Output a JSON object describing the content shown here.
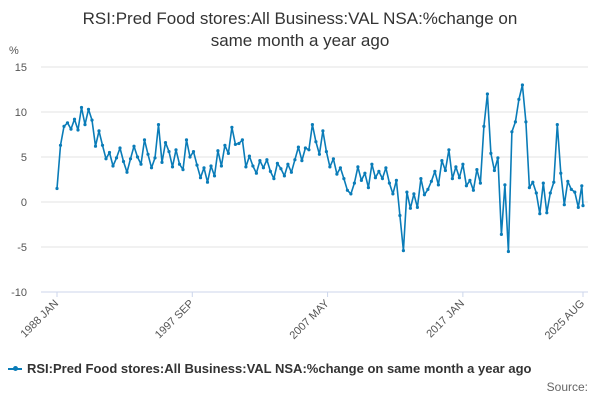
{
  "chart_data": {
    "type": "line",
    "title_lines": [
      "RSI:Pred Food stores:All Business:VAL NSA:%change on",
      "same month a year ago"
    ],
    "ylabel": "%",
    "ylim": [
      -10,
      15
    ],
    "yticks": [
      15,
      10,
      5,
      0,
      -5,
      -10
    ],
    "xlim": [
      "1988-01",
      "2025-08"
    ],
    "xticks": [
      "1988 JAN",
      "1997 SEP",
      "2007 MAY",
      "2017 JAN",
      "2025 AUG"
    ],
    "grid": true,
    "legend_position": "bottom",
    "series": [
      {
        "name": "RSI:Pred Food stores:All Business:VAL NSA:%change on same month a year ago",
        "color": "#0a7cb8",
        "x": [
          "1988-01",
          "1988-04",
          "1988-07",
          "1988-10",
          "1989-01",
          "1989-04",
          "1989-07",
          "1989-10",
          "1990-01",
          "1990-04",
          "1990-07",
          "1990-10",
          "1991-01",
          "1991-04",
          "1991-07",
          "1991-10",
          "1992-01",
          "1992-04",
          "1992-07",
          "1992-10",
          "1993-01",
          "1993-04",
          "1993-07",
          "1993-10",
          "1994-01",
          "1994-04",
          "1994-07",
          "1994-10",
          "1995-01",
          "1995-04",
          "1995-07",
          "1995-10",
          "1996-01",
          "1996-04",
          "1996-07",
          "1996-10",
          "1997-01",
          "1997-04",
          "1997-07",
          "1997-10",
          "1998-01",
          "1998-04",
          "1998-07",
          "1998-10",
          "1999-01",
          "1999-04",
          "1999-07",
          "1999-10",
          "2000-01",
          "2000-04",
          "2000-07",
          "2000-10",
          "2001-01",
          "2001-04",
          "2001-07",
          "2001-10",
          "2002-01",
          "2002-04",
          "2002-07",
          "2002-10",
          "2003-01",
          "2003-04",
          "2003-07",
          "2003-10",
          "2004-01",
          "2004-04",
          "2004-07",
          "2004-10",
          "2005-01",
          "2005-04",
          "2005-07",
          "2005-10",
          "2006-01",
          "2006-04",
          "2006-07",
          "2006-10",
          "2007-01",
          "2007-04",
          "2007-07",
          "2007-10",
          "2008-01",
          "2008-04",
          "2008-07",
          "2008-10",
          "2009-01",
          "2009-04",
          "2009-07",
          "2009-10",
          "2010-01",
          "2010-04",
          "2010-07",
          "2010-10",
          "2011-01",
          "2011-04",
          "2011-07",
          "2011-10",
          "2012-01",
          "2012-04",
          "2012-07",
          "2012-10",
          "2013-01",
          "2013-04",
          "2013-07",
          "2013-10",
          "2014-01",
          "2014-04",
          "2014-07",
          "2014-10",
          "2015-01",
          "2015-04",
          "2015-07",
          "2015-10",
          "2016-01",
          "2016-04",
          "2016-07",
          "2016-10",
          "2017-01",
          "2017-04",
          "2017-07",
          "2017-10",
          "2018-01",
          "2018-04",
          "2018-07",
          "2018-10",
          "2019-01",
          "2019-04",
          "2019-07",
          "2019-10",
          "2020-01",
          "2020-04",
          "2020-07",
          "2020-10",
          "2021-01",
          "2021-04",
          "2021-07",
          "2021-10",
          "2022-01",
          "2022-04",
          "2022-07",
          "2022-10",
          "2023-01",
          "2023-04",
          "2023-07",
          "2023-10",
          "2024-01",
          "2024-04",
          "2024-07",
          "2024-10",
          "2025-01",
          "2025-04",
          "2025-07",
          "2025-08"
        ],
        "y": [
          1.5,
          6.3,
          8.4,
          8.8,
          8.1,
          9.2,
          8.0,
          10.5,
          8.6,
          10.3,
          9.1,
          6.2,
          7.9,
          6.3,
          4.8,
          5.5,
          4.0,
          4.9,
          6.0,
          4.5,
          3.3,
          4.8,
          6.2,
          5.0,
          4.2,
          6.9,
          5.3,
          3.8,
          4.9,
          8.6,
          4.4,
          6.6,
          5.6,
          3.9,
          5.8,
          4.2,
          3.6,
          6.9,
          5.0,
          5.6,
          4.1,
          2.7,
          3.8,
          2.2,
          4.0,
          2.9,
          5.7,
          4.0,
          6.3,
          5.4,
          8.3,
          6.4,
          6.5,
          6.9,
          3.9,
          5.1,
          4.0,
          3.2,
          4.6,
          3.8,
          4.7,
          3.4,
          2.6,
          4.3,
          3.7,
          2.9,
          4.2,
          3.3,
          4.7,
          6.1,
          4.6,
          6.0,
          5.8,
          8.6,
          6.7,
          5.3,
          7.9,
          5.6,
          3.9,
          4.8,
          3.1,
          3.8,
          2.6,
          1.3,
          0.9,
          2.1,
          3.9,
          2.4,
          3.2,
          1.6,
          4.2,
          2.7,
          3.4,
          2.6,
          3.8,
          2.1,
          0.9,
          2.4,
          -1.5,
          -5.4,
          1.1,
          -0.7,
          0.9,
          -0.6,
          2.6,
          0.8,
          1.4,
          2.3,
          3.4,
          1.9,
          4.6,
          3.5,
          5.8,
          2.6,
          3.9,
          2.7,
          4.2,
          1.8,
          2.4,
          1.3,
          3.6,
          2.1,
          8.4,
          12.0,
          5.4,
          3.5,
          4.9,
          -3.6,
          1.9,
          -5.5,
          7.8,
          8.9,
          11.4,
          13.0,
          8.9,
          1.6,
          2.2,
          1.0,
          -1.3,
          2.1,
          -1.2,
          1.0,
          2.2,
          8.6,
          3.2,
          -0.3,
          2.3,
          1.4,
          1.1,
          -0.6,
          1.8,
          -0.4
        ]
      }
    ]
  },
  "source_label": "Source:"
}
